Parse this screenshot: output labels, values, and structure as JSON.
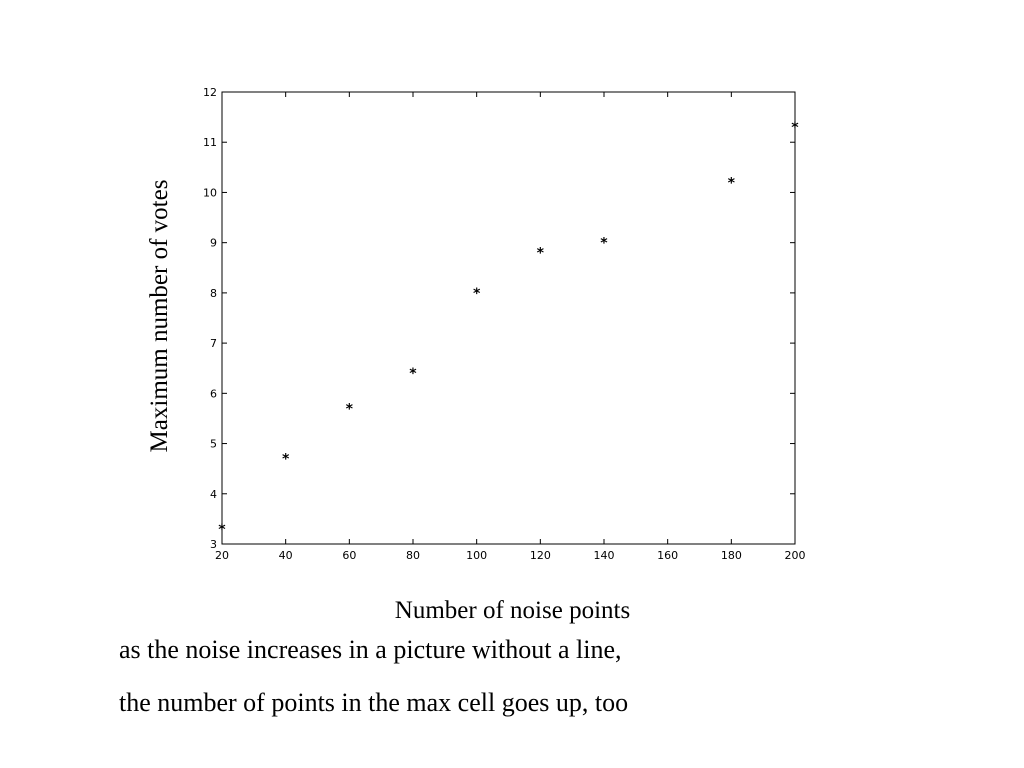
{
  "chart_data": {
    "type": "scatter",
    "x": [
      20,
      40,
      60,
      80,
      100,
      120,
      140,
      180,
      200
    ],
    "y": [
      3.4,
      4.8,
      5.8,
      6.5,
      8.1,
      8.9,
      9.1,
      10.3,
      11.4
    ],
    "marker": "*",
    "xlabel": "Number of noise points",
    "ylabel": "Maximum number of votes",
    "xlim": [
      20,
      200
    ],
    "ylim": [
      3,
      12
    ],
    "xticks": [
      20,
      40,
      60,
      80,
      100,
      120,
      140,
      160,
      180,
      200
    ],
    "yticks": [
      3,
      4,
      5,
      6,
      7,
      8,
      9,
      10,
      11,
      12
    ],
    "grid": false,
    "color": "#000000"
  },
  "caption": {
    "line1": "as the noise increases in a picture without a line,",
    "line2": "the number of points in the max cell goes up, too"
  }
}
